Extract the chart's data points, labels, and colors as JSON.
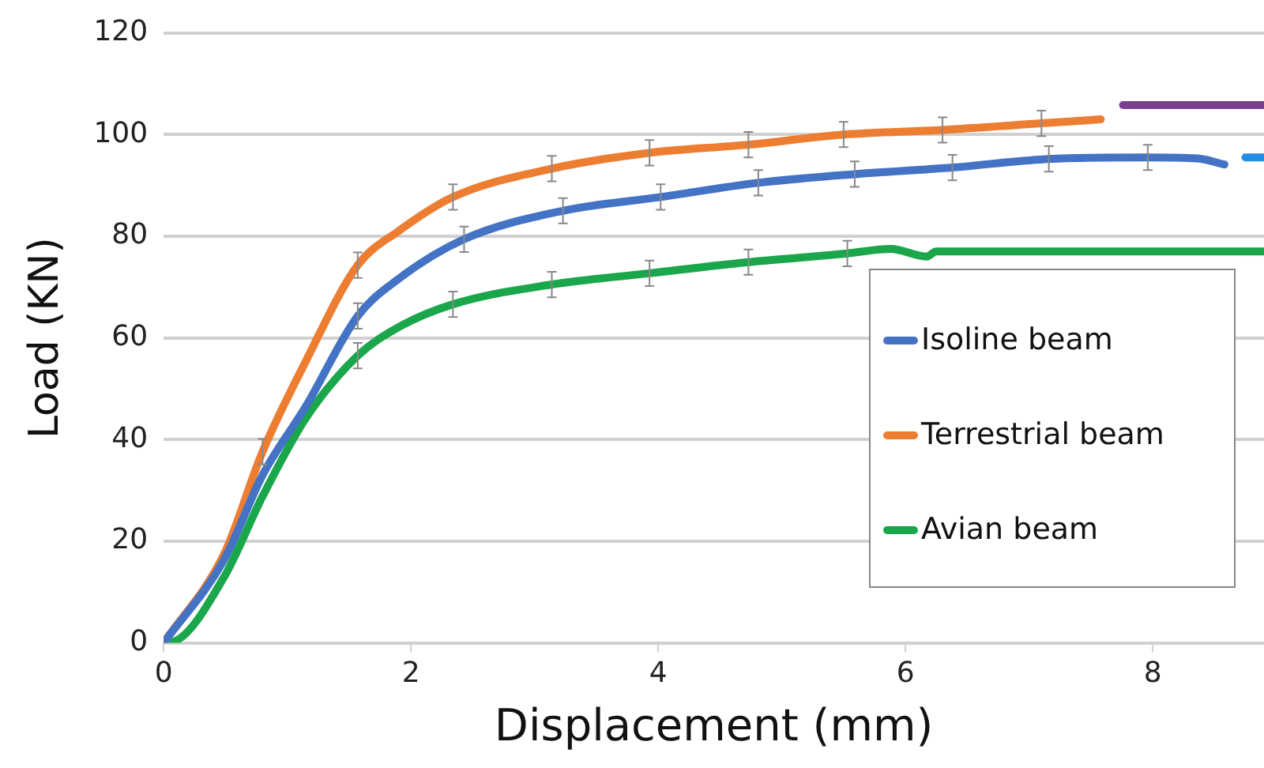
{
  "chart_data": {
    "type": "line",
    "xlabel": "Displacement (mm)",
    "ylabel": "Load (KN)",
    "xlim": [
      0,
      8.9
    ],
    "xticks": [
      0,
      2,
      4,
      6,
      8
    ],
    "ylim": [
      0,
      120
    ],
    "yticks": [
      0,
      20,
      40,
      60,
      80,
      100,
      120
    ],
    "grid": "y",
    "legend": "bottom right",
    "marker": "none",
    "line_style": "solid",
    "series": [
      {
        "name": "Isoline beam",
        "color": "#4472c4",
        "x": [
          0,
          0.49,
          0.8,
          1.15,
          1.57,
          1.9,
          2.43,
          3.23,
          4.02,
          4.81,
          5.59,
          6.38,
          7.16,
          7.96,
          8.36,
          8.58
        ],
        "values": [
          0,
          16.4,
          33,
          46.5,
          64.3,
          71.6,
          79.4,
          85,
          87.7,
          90.5,
          92.2,
          93.5,
          95.2,
          95.5,
          95.3,
          94.1
        ],
        "errors": [
          null,
          null,
          null,
          null,
          2.5,
          null,
          2.5,
          2.5,
          2.5,
          2.5,
          2.5,
          2.5,
          2.5,
          2.5,
          null,
          null
        ]
      },
      {
        "name": "Terrestrial beam",
        "color": "#ed7d31",
        "x": [
          0,
          0.49,
          0.8,
          1.15,
          1.57,
          1.9,
          2.34,
          3.14,
          3.93,
          4.73,
          5.5,
          6.3,
          7.1,
          7.58
        ],
        "values": [
          0,
          17.5,
          37.6,
          55.4,
          74.3,
          81,
          87.7,
          93.3,
          96.4,
          98,
          100,
          100.9,
          102.2,
          103
        ],
        "errors": [
          null,
          null,
          2.5,
          null,
          2.5,
          null,
          2.5,
          2.5,
          2.5,
          2.5,
          2.5,
          2.5,
          2.5,
          null
        ]
      },
      {
        "name": "Avian beam",
        "color": "#1aa64a",
        "x": [
          0,
          0.09,
          0.49,
          0.8,
          1.15,
          1.57,
          1.9,
          2.34,
          3.14,
          3.93,
          4.73,
          5.53,
          5.88,
          6.17,
          6.25,
          8.9
        ],
        "values": [
          0,
          0.3,
          13,
          28.8,
          44.2,
          56.5,
          62.1,
          66.6,
          70.5,
          72.7,
          74.9,
          76.6,
          77.5,
          76,
          77,
          77
        ],
        "errors": [
          null,
          null,
          null,
          null,
          null,
          2.5,
          null,
          2.5,
          2.5,
          2.5,
          2.5,
          2.5,
          null,
          null,
          null,
          null
        ]
      },
      {
        "color": "#7b3f8f",
        "x": [
          7.76,
          8.9
        ],
        "values": [
          105.8,
          105.8
        ]
      },
      {
        "color": "#1e8fe6",
        "x": [
          8.75,
          8.9
        ],
        "values": [
          95.5,
          95.5
        ]
      }
    ]
  }
}
